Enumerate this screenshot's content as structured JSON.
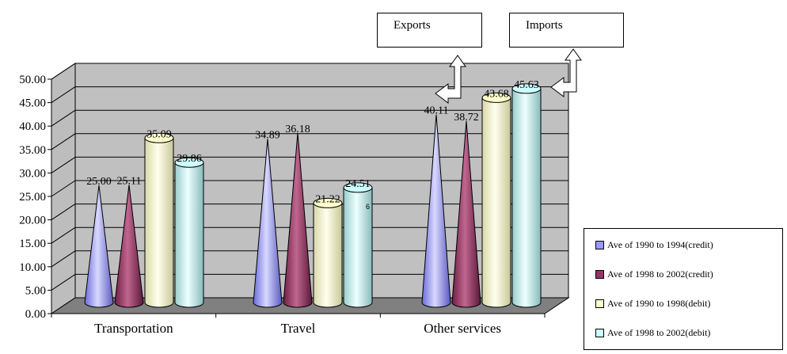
{
  "chart_data": {
    "type": "bar",
    "categories": [
      "Transportation",
      "Travel",
      "Other services"
    ],
    "series": [
      {
        "name": "Ave of 1990 to 1994(credit)",
        "values": [
          25.0,
          34.89,
          40.11
        ],
        "color": "#9999ff",
        "shape": "cone"
      },
      {
        "name": "Ave of 1998 to 2002(credit)",
        "values": [
          25.11,
          36.18,
          38.72
        ],
        "color": "#993366",
        "shape": "cone"
      },
      {
        "name": "Ave of 1990 to 1998(debit)",
        "values": [
          35.09,
          21.22,
          43.68
        ],
        "color": "#ffffcc",
        "shape": "cylinder"
      },
      {
        "name": "Ave of 1998 to 2002(debit)",
        "values": [
          29.86,
          24.51,
          45.63
        ],
        "color": "#ccffff",
        "shape": "cylinder"
      }
    ],
    "value_labels": [
      [
        "25.00",
        "34.89",
        "40.11"
      ],
      [
        "25.11",
        "36.18",
        "38.72"
      ],
      [
        "35.09",
        "21.22",
        "43.68"
      ],
      [
        "29.86",
        "24.51",
        "45.63"
      ]
    ],
    "yticks": [
      "0.00",
      "5.00",
      "10.00",
      "15.00",
      "20.00",
      "25.00",
      "30.00",
      "35.00",
      "40.00",
      "45.00",
      "50.00"
    ],
    "ylim": [
      0,
      50
    ],
    "grid": true,
    "stray_label": "6",
    "legend_position": "bottom-right",
    "colors": {
      "wall": "#c0c0c0",
      "floor": "#808080",
      "grid": "#000000"
    }
  },
  "annotations": {
    "exports": "Exports",
    "imports": "Imports"
  }
}
